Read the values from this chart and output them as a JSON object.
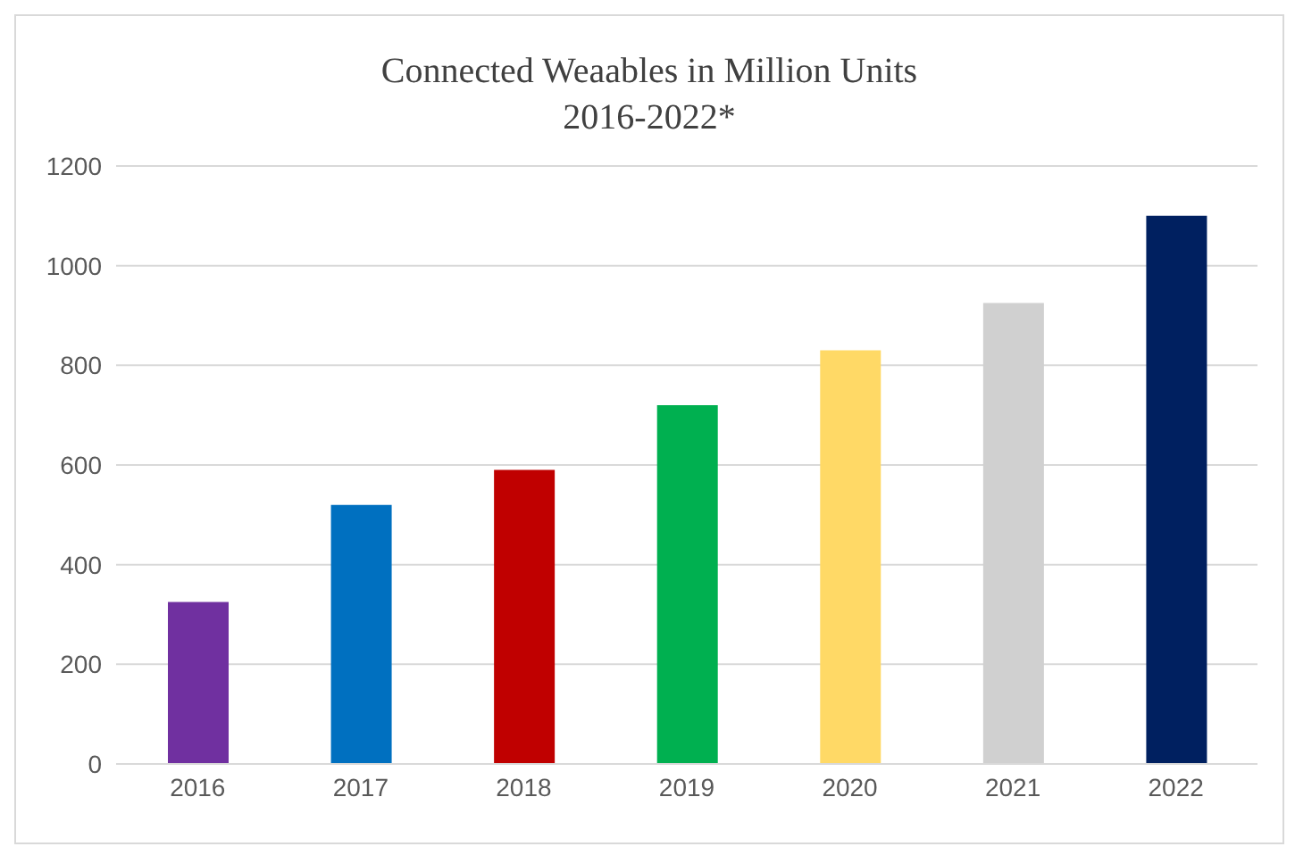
{
  "chart_data": {
    "type": "bar",
    "title": "Connected Weaables in Million Units",
    "subtitle": "2016-2022*",
    "categories": [
      "2016",
      "2017",
      "2018",
      "2019",
      "2020",
      "2021",
      "2022"
    ],
    "values": [
      325,
      520,
      590,
      720,
      830,
      925,
      1100
    ],
    "colors": [
      "#7030a0",
      "#0070c0",
      "#c00000",
      "#00b050",
      "#ffd966",
      "#d0d0d0",
      "#002060"
    ],
    "ylim": [
      0,
      1200
    ],
    "yticks": [
      0,
      200,
      400,
      600,
      800,
      1000,
      1200
    ],
    "grid": "y"
  }
}
